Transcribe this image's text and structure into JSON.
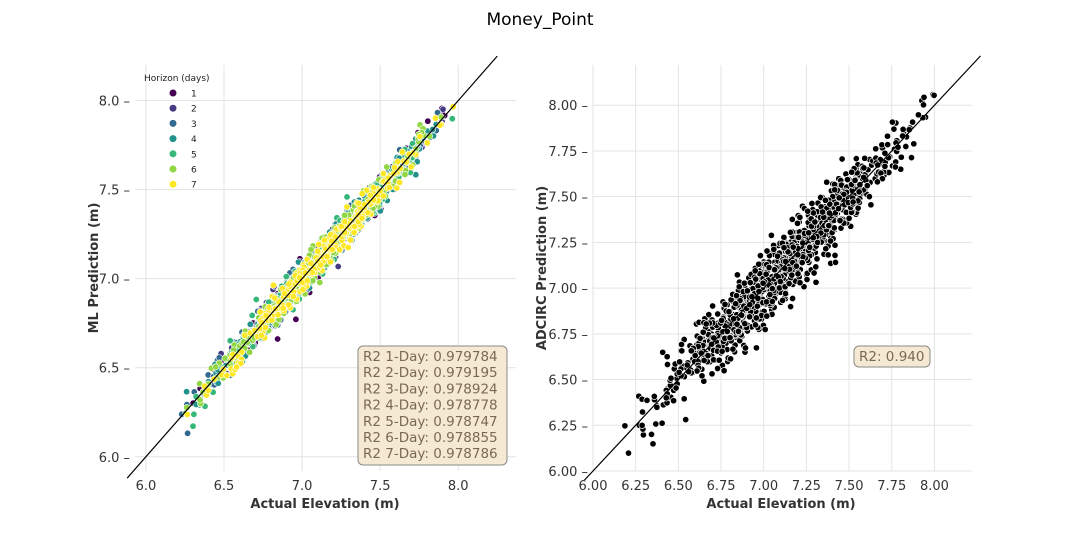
{
  "figure": {
    "title": "Money_Point"
  },
  "chart_data": [
    {
      "type": "scatter",
      "xlabel": "Actual Elevation (m)",
      "ylabel": "ML Prediction (m)",
      "xlim": [
        5.93,
        8.37
      ],
      "ylim": [
        5.92,
        8.2
      ],
      "xticks": [
        "6.0",
        "6.5",
        "7.0",
        "7.5",
        "8.0"
      ],
      "yticks": [
        "6.0",
        "6.5",
        "7.0",
        "7.5",
        "8.0"
      ],
      "grid": true,
      "legend": {
        "title": "Horizon (days)",
        "placement": "top-left",
        "entries": [
          "1",
          "2",
          "3",
          "4",
          "5",
          "6",
          "7"
        ]
      },
      "series_colors": [
        "#440154",
        "#443983",
        "#31688e",
        "#21918c",
        "#35b779",
        "#90d743",
        "#fde725"
      ],
      "x_range": [
        6.1,
        8.12
      ],
      "noise_sd": 0.045,
      "points_per_series": 260,
      "reference_line": "y = x",
      "annotation": [
        "R2 1-Day: 0.979784",
        "R2 2-Day: 0.979195",
        "R2 3-Day: 0.978924",
        "R2 4-Day: 0.978778",
        "R2 5-Day: 0.978747",
        "R2 6-Day: 0.978855",
        "R2 7-Day: 0.978786"
      ]
    },
    {
      "type": "scatter",
      "xlabel": "Actual Elevation (m)",
      "ylabel": "ADCIRC Prediction (m)",
      "xlim": [
        6.0,
        8.22
      ],
      "ylim": [
        6.0,
        8.22
      ],
      "xticks": [
        "6.00",
        "6.25",
        "6.50",
        "6.75",
        "7.00",
        "7.25",
        "7.50",
        "7.75",
        "8.00"
      ],
      "yticks": [
        "6.00",
        "6.25",
        "6.50",
        "6.75",
        "7.00",
        "7.25",
        "7.50",
        "7.75",
        "8.00"
      ],
      "grid": true,
      "color": "#000000",
      "x_range": [
        6.1,
        8.12
      ],
      "noise_sd": 0.085,
      "points": 1100,
      "reference_line": "y = x",
      "annotation": [
        "R2: 0.940"
      ]
    }
  ]
}
